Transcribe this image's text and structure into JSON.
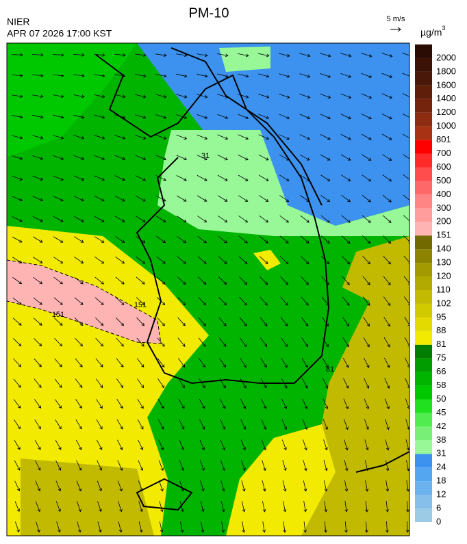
{
  "header": {
    "title": "PM-10",
    "source": "NIER",
    "datetime": "APR 07 2026 17:00 KST",
    "wind_scale": "5 m/s",
    "unit": "µg/m",
    "unit_superscript": "3"
  },
  "map": {
    "contour_labels": [
      "31",
      "151",
      "151",
      "81"
    ]
  },
  "legend": {
    "levels": [
      0,
      6,
      12,
      18,
      24,
      31,
      38,
      42,
      45,
      50,
      58,
      66,
      75,
      81,
      88,
      95,
      102,
      110,
      120,
      130,
      140,
      151,
      200,
      300,
      400,
      500,
      600,
      700,
      801,
      1000,
      1200,
      1400,
      1600,
      1800,
      2000
    ],
    "colors": [
      "#9ccbe6",
      "#86bfea",
      "#6cb2ee",
      "#55a6f0",
      "#3c92ee",
      "#98f898",
      "#78f078",
      "#50ec50",
      "#20e020",
      "#00c800",
      "#00b400",
      "#009c00",
      "#007c00",
      "#f2ea00",
      "#e2da00",
      "#d2ca00",
      "#c2ba00",
      "#b2aa00",
      "#a29a00",
      "#8c8400",
      "#726a00",
      "#ffb4b4",
      "#ff9c9c",
      "#ff8484",
      "#ff6868",
      "#ff4c4c",
      "#ff2a2a",
      "#ff0000",
      "#a83214",
      "#8c2c10",
      "#74240c",
      "#5e1e0a",
      "#4a1808",
      "#3a1206",
      "#2a0c04"
    ]
  }
}
